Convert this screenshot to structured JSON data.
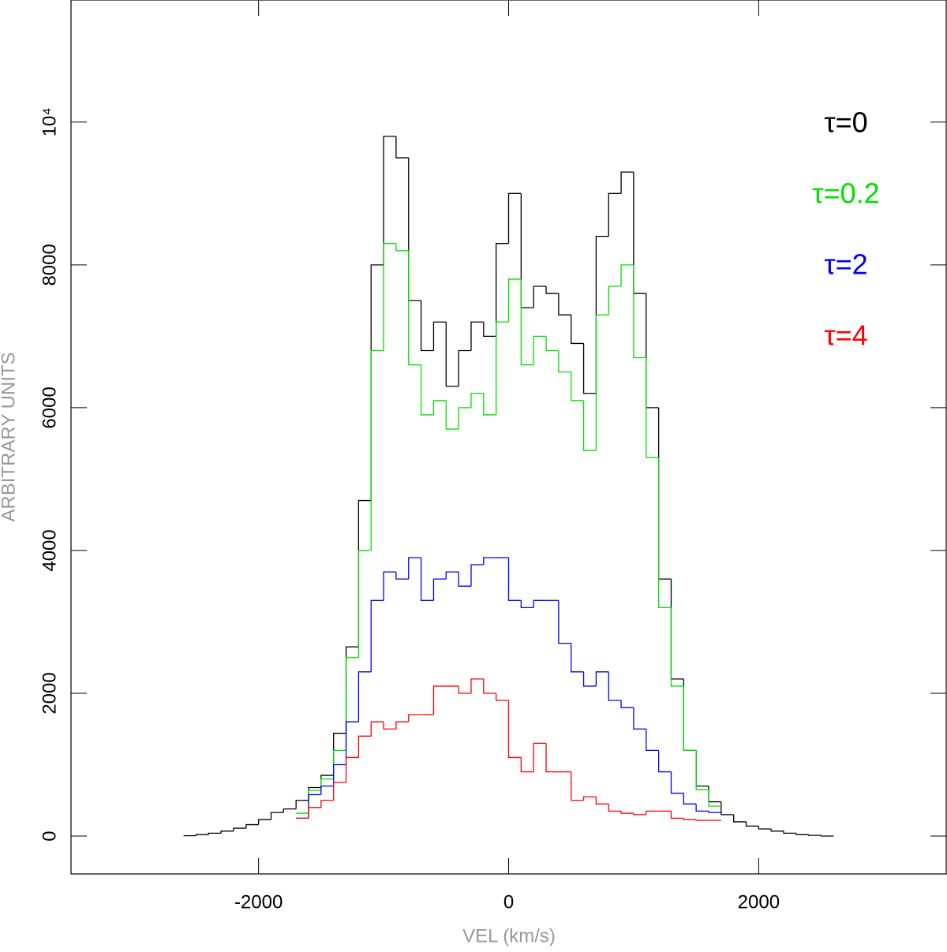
{
  "chart_data": {
    "type": "histogram",
    "x_label": "VEL (km/s)",
    "y_label": "ARBITRARY UNITS",
    "bins": [
      -2600,
      -2500,
      -2400,
      -2300,
      -2200,
      -2100,
      -2000,
      -1900,
      -1800,
      -1700,
      -1600,
      -1500,
      -1400,
      -1300,
      -1200,
      -1100,
      -1000,
      -900,
      -800,
      -700,
      -600,
      -500,
      -400,
      -300,
      -200,
      -100,
      0,
      100,
      200,
      300,
      400,
      500,
      600,
      700,
      800,
      900,
      1000,
      1100,
      1200,
      1300,
      1400,
      1500,
      1600,
      1700,
      1800,
      1900,
      2000,
      2100,
      2200,
      2300,
      2400,
      2500,
      2600
    ],
    "series": [
      {
        "name": "τ=0",
        "color": "#000000",
        "values": [
          5,
          20,
          40,
          70,
          110,
          160,
          230,
          330,
          380,
          500,
          680,
          850,
          1440,
          2650,
          4700,
          8000,
          9800,
          9500,
          7500,
          6800,
          7200,
          6300,
          6800,
          7200,
          7000,
          8300,
          9000,
          7400,
          7700,
          7600,
          7300,
          6900,
          6200,
          8400,
          9000,
          9300,
          7600,
          6000,
          3600,
          2200,
          1200,
          700,
          480,
          300,
          200,
          140,
          100,
          70,
          40,
          20,
          10,
          0
        ]
      },
      {
        "name": "τ=0.2",
        "color": "#00e000",
        "values": [
          null,
          null,
          null,
          null,
          null,
          null,
          null,
          null,
          null,
          320,
          640,
          800,
          1200,
          2500,
          4000,
          6800,
          8300,
          8200,
          6600,
          5900,
          6100,
          5700,
          6000,
          6200,
          5900,
          7200,
          7800,
          6600,
          7000,
          6800,
          6500,
          6100,
          5400,
          7300,
          7700,
          8000,
          6700,
          5300,
          3200,
          2100,
          1200,
          650,
          420,
          null,
          null,
          null,
          null,
          null,
          null,
          null,
          null,
          null
        ]
      },
      {
        "name": "τ=2",
        "color": "#0000ff",
        "values": [
          null,
          null,
          null,
          null,
          null,
          null,
          null,
          null,
          null,
          250,
          580,
          700,
          1000,
          1600,
          2300,
          3300,
          3700,
          3600,
          3900,
          3300,
          3600,
          3700,
          3500,
          3800,
          3900,
          3900,
          3300,
          3200,
          3300,
          3300,
          2700,
          2300,
          2100,
          2300,
          1900,
          1800,
          1500,
          1200,
          900,
          600,
          450,
          350,
          330,
          null,
          null,
          null,
          null,
          null,
          null,
          null,
          null,
          null
        ]
      },
      {
        "name": "τ=4",
        "color": "#ff0000",
        "values": [
          null,
          null,
          null,
          null,
          null,
          null,
          null,
          null,
          null,
          250,
          400,
          500,
          750,
          1100,
          1400,
          1600,
          1500,
          1600,
          1700,
          1700,
          2100,
          2100,
          2000,
          2200,
          2000,
          1900,
          1100,
          900,
          1300,
          900,
          900,
          500,
          550,
          450,
          350,
          320,
          300,
          350,
          350,
          250,
          230,
          220,
          220,
          null,
          null,
          null,
          null,
          null,
          null,
          null,
          null,
          null
        ]
      }
    ],
    "xlim": [
      -3500,
      3500
    ],
    "xticks": [
      -2000,
      0,
      2000
    ],
    "ylim": [
      -530,
      11710
    ],
    "yticks": [
      0,
      2000,
      4000,
      6000,
      8000,
      {
        "value": 10000,
        "label": "10⁴"
      }
    ]
  }
}
